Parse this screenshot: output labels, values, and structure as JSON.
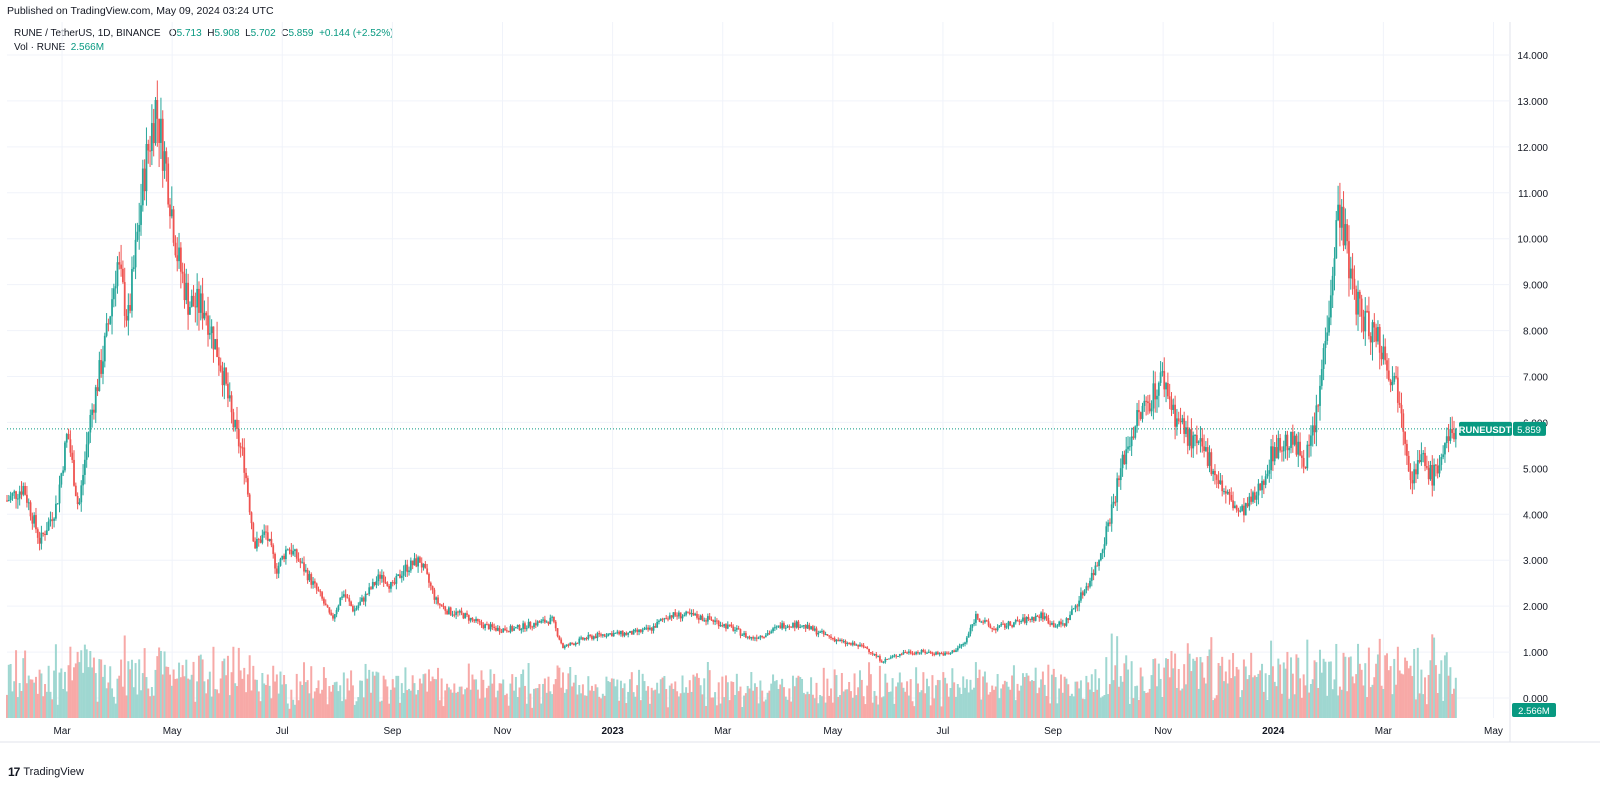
{
  "published": "Published on TradingView.com, May 09, 2024 03:24 UTC",
  "legend": {
    "symbol": "RUNE / TetherUS, 1D, BINANCE",
    "o_label": "O",
    "o_value": "5.713",
    "h_label": "H",
    "h_value": "5.908",
    "l_label": "L",
    "l_value": "5.702",
    "c_label": "C",
    "c_value": "5.859",
    "change": "+0.144 (+2.52%)",
    "vol_label": "Vol · RUNE",
    "vol_value": "2.566M"
  },
  "price_tag": {
    "label": "RUNEUSDT",
    "value": "5.859"
  },
  "volume_tag": {
    "value": "2.566M"
  },
  "footer": {
    "logo_mark": "17",
    "logo_text": "TradingView"
  },
  "colors": {
    "up": "#26a69a",
    "down": "#ef5350",
    "up_vol": "#9fd7d1",
    "down_vol": "#f7a9a7",
    "grid": "#f0f3fa",
    "tag": "#089981"
  },
  "chart_data": {
    "type": "candlestick",
    "symbol": "RUNEUSDT",
    "ylim": [
      0,
      14.5
    ],
    "y_ticks": [
      "14.000",
      "13.000",
      "12.000",
      "11.000",
      "10.000",
      "9.000",
      "8.000",
      "7.000",
      "6.000",
      "5.000",
      "4.000",
      "3.000",
      "2.000",
      "1.000",
      "0.000"
    ],
    "y_tick_values": [
      14,
      13,
      12,
      11,
      10,
      9,
      8,
      7,
      6,
      5,
      4,
      3,
      2,
      1,
      0
    ],
    "x_ticks": [
      "Mar",
      "May",
      "Jul",
      "Sep",
      "Nov",
      "2023",
      "Mar",
      "May",
      "Jul",
      "Sep",
      "Nov",
      "2024",
      "Mar",
      "May"
    ],
    "x_tick_months": [
      1,
      3,
      5,
      7,
      9,
      11,
      13,
      15,
      17,
      19,
      21,
      23,
      25,
      27
    ],
    "x_range_months": [
      0.0,
      27.3
    ],
    "last_close": 5.859,
    "price_path": [
      [
        0.0,
        4.3
      ],
      [
        0.3,
        4.6
      ],
      [
        0.6,
        3.4
      ],
      [
        0.9,
        4.2
      ],
      [
        1.1,
        5.8
      ],
      [
        1.3,
        4.1
      ],
      [
        1.5,
        6.0
      ],
      [
        1.8,
        7.8
      ],
      [
        2.0,
        9.5
      ],
      [
        2.2,
        8.2
      ],
      [
        2.5,
        11.5
      ],
      [
        2.7,
        12.9
      ],
      [
        2.9,
        11.5
      ],
      [
        3.1,
        9.6
      ],
      [
        3.3,
        8.6
      ],
      [
        3.6,
        8.5
      ],
      [
        3.9,
        7.2
      ],
      [
        4.1,
        6.0
      ],
      [
        4.3,
        5.2
      ],
      [
        4.5,
        3.3
      ],
      [
        4.7,
        3.6
      ],
      [
        4.9,
        2.8
      ],
      [
        5.1,
        3.3
      ],
      [
        5.3,
        3.0
      ],
      [
        5.5,
        2.6
      ],
      [
        5.7,
        2.2
      ],
      [
        5.9,
        1.7
      ],
      [
        6.1,
        2.3
      ],
      [
        6.3,
        1.9
      ],
      [
        6.5,
        2.2
      ],
      [
        6.8,
        2.7
      ],
      [
        7.0,
        2.4
      ],
      [
        7.2,
        2.8
      ],
      [
        7.5,
        3.0
      ],
      [
        7.8,
        2.1
      ],
      [
        8.0,
        1.9
      ],
      [
        8.3,
        1.8
      ],
      [
        8.6,
        1.6
      ],
      [
        8.9,
        1.5
      ],
      [
        9.2,
        1.5
      ],
      [
        9.5,
        1.6
      ],
      [
        9.9,
        1.7
      ],
      [
        10.1,
        1.1
      ],
      [
        10.5,
        1.3
      ],
      [
        10.9,
        1.4
      ],
      [
        11.3,
        1.4
      ],
      [
        11.7,
        1.5
      ],
      [
        12.0,
        1.8
      ],
      [
        12.4,
        1.8
      ],
      [
        12.8,
        1.7
      ],
      [
        13.2,
        1.5
      ],
      [
        13.5,
        1.3
      ],
      [
        13.8,
        1.4
      ],
      [
        14.1,
        1.6
      ],
      [
        14.4,
        1.6
      ],
      [
        14.8,
        1.4
      ],
      [
        15.2,
        1.2
      ],
      [
        15.6,
        1.1
      ],
      [
        15.9,
        0.8
      ],
      [
        16.3,
        1.0
      ],
      [
        16.7,
        1.0
      ],
      [
        17.1,
        0.95
      ],
      [
        17.4,
        1.2
      ],
      [
        17.6,
        1.8
      ],
      [
        17.9,
        1.5
      ],
      [
        18.2,
        1.6
      ],
      [
        18.5,
        1.7
      ],
      [
        18.8,
        1.8
      ],
      [
        19.0,
        1.6
      ],
      [
        19.2,
        1.6
      ],
      [
        19.5,
        2.2
      ],
      [
        19.8,
        2.9
      ],
      [
        20.0,
        3.8
      ],
      [
        20.3,
        5.3
      ],
      [
        20.5,
        6.0
      ],
      [
        20.8,
        6.6
      ],
      [
        21.0,
        7.0
      ],
      [
        21.2,
        6.2
      ],
      [
        21.5,
        5.6
      ],
      [
        21.8,
        5.3
      ],
      [
        22.1,
        4.5
      ],
      [
        22.4,
        4.0
      ],
      [
        22.7,
        4.4
      ],
      [
        23.0,
        5.4
      ],
      [
        23.3,
        5.6
      ],
      [
        23.6,
        5.2
      ],
      [
        23.8,
        6.2
      ],
      [
        24.0,
        8.5
      ],
      [
        24.2,
        10.8
      ],
      [
        24.4,
        9.2
      ],
      [
        24.6,
        8.3
      ],
      [
        24.9,
        7.9
      ],
      [
        25.1,
        7.2
      ],
      [
        25.3,
        6.6
      ],
      [
        25.5,
        4.8
      ],
      [
        25.7,
        5.2
      ],
      [
        25.9,
        4.8
      ],
      [
        26.1,
        5.4
      ],
      [
        26.3,
        5.86
      ]
    ],
    "volume_max_label": "3.3M"
  }
}
